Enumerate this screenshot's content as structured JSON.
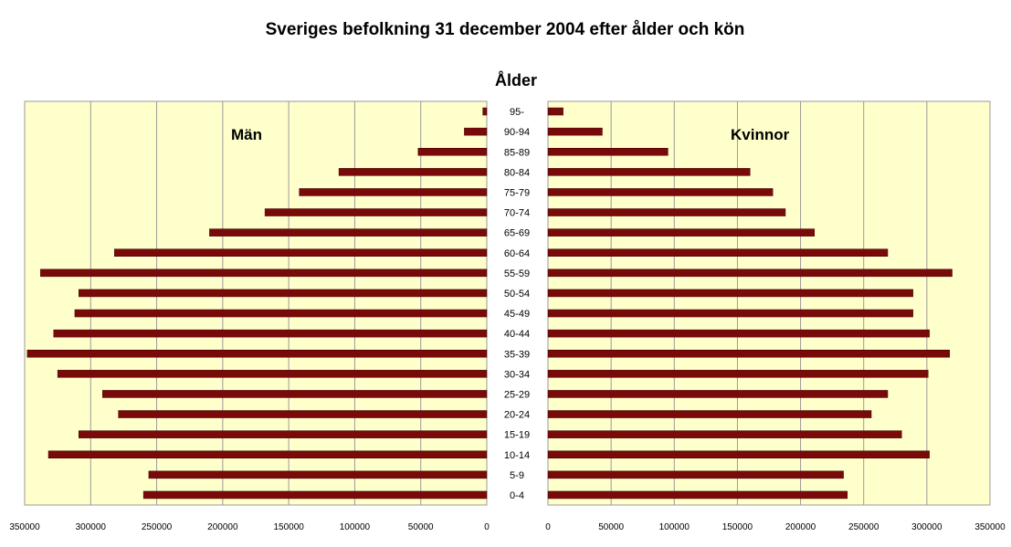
{
  "chart_data": {
    "type": "bar",
    "title": "Sveriges befolkning 31 december 2004 efter ålder och kön",
    "subtitle": "Ålder",
    "orientation": "horizontal",
    "categories": [
      "95-",
      "90-94",
      "85-89",
      "80-84",
      "75-79",
      "70-74",
      "65-69",
      "60-64",
      "55-59",
      "50-54",
      "45-49",
      "40-44",
      "35-39",
      "30-34",
      "25-29",
      "20-24",
      "15-19",
      "10-14",
      "5-9",
      "0-4"
    ],
    "series": [
      {
        "name": "Män",
        "side": "left",
        "values": [
          3000,
          17000,
          52000,
          112000,
          142000,
          168000,
          210000,
          282000,
          338000,
          309000,
          312000,
          328000,
          348000,
          325000,
          291000,
          279000,
          309000,
          332000,
          256000,
          260000
        ]
      },
      {
        "name": "Kvinnor",
        "side": "right",
        "values": [
          12000,
          43000,
          95000,
          160000,
          178000,
          188000,
          211000,
          269000,
          320000,
          289000,
          289000,
          302000,
          318000,
          301000,
          269000,
          256000,
          280000,
          302000,
          234000,
          237000
        ]
      }
    ],
    "xlim": [
      0,
      350000
    ],
    "xticks": [
      "0",
      "50000",
      "100000",
      "150000",
      "200000",
      "250000",
      "300000",
      "350000"
    ],
    "grid": true,
    "colors": {
      "plot_background": "#ffffcc",
      "bar_fill": "#7a0a0a",
      "gridline": "#9a9a9a",
      "frame": "#9a9a9a"
    }
  }
}
